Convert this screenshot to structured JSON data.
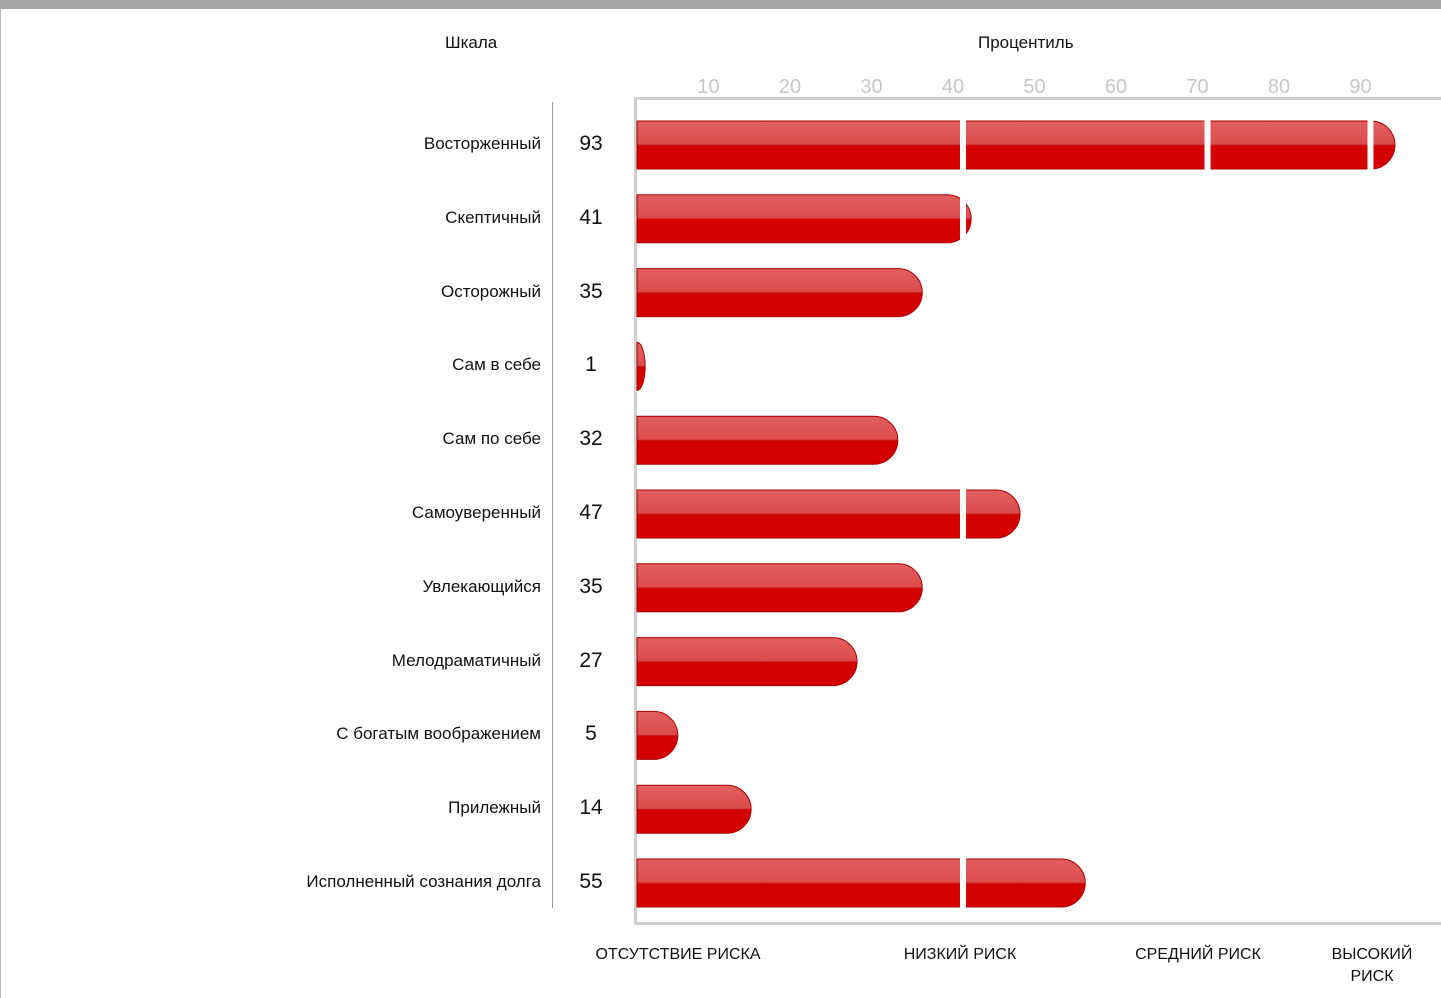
{
  "header": {
    "scale_title": "Шкала",
    "percentile_title": "Процентиль"
  },
  "chart_data": {
    "type": "bar",
    "orientation": "horizontal",
    "x_ticks": [
      10,
      20,
      30,
      40,
      50,
      60,
      70,
      80,
      90
    ],
    "xlim": [
      0,
      100
    ],
    "categories": [
      "Восторженный",
      "Скептичный",
      "Осторожный",
      "Сам в себе",
      "Сам по себе",
      "Самоуверенный",
      "Увлекающийся",
      "Мелодраматичный",
      "С богатым воображением",
      "Прилежный",
      "Исполненный сознания долга"
    ],
    "values": [
      93,
      41,
      35,
      1,
      32,
      47,
      35,
      27,
      5,
      14,
      55
    ],
    "zone_boundaries": [
      40,
      70,
      90
    ],
    "zones": [
      "ОТСУТСТВИЕ РИСКА",
      "НИЗКИЙ РИСК",
      "СРЕДНИЙ РИСК",
      "ВЫСОКИЙ РИСК"
    ],
    "bar_color": "#d40000",
    "bar_highlight": "#de4f4f",
    "grid": false
  }
}
